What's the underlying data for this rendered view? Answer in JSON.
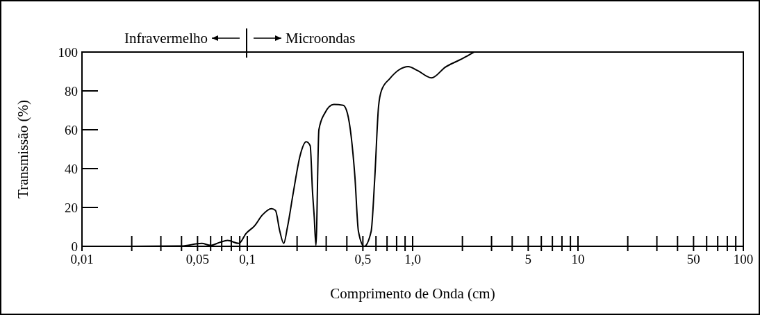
{
  "chart_data": {
    "type": "line",
    "xlabel": "Comprimento de Onda (cm)",
    "ylabel": "Transmissão (%)",
    "annotations": [
      "Infravermelho",
      "Microondas"
    ],
    "log": "x",
    "grid": false,
    "marker": "none",
    "line_style": "solid",
    "xlim": [
      0.01,
      100
    ],
    "ylim": [
      0,
      100
    ],
    "xticks": [
      {
        "value": 0.01,
        "label": "0,01"
      },
      {
        "value": 0.02,
        "label": null
      },
      {
        "value": 0.03,
        "label": null
      },
      {
        "value": 0.04,
        "label": null
      },
      {
        "value": 0.05,
        "label": "0,05"
      },
      {
        "value": 0.06,
        "label": null
      },
      {
        "value": 0.07,
        "label": null
      },
      {
        "value": 0.08,
        "label": null
      },
      {
        "value": 0.09,
        "label": null
      },
      {
        "value": 0.1,
        "label": "0,1"
      },
      {
        "value": 0.2,
        "label": null
      },
      {
        "value": 0.3,
        "label": null
      },
      {
        "value": 0.4,
        "label": null
      },
      {
        "value": 0.5,
        "label": "0,5"
      },
      {
        "value": 0.6,
        "label": null
      },
      {
        "value": 0.7,
        "label": null
      },
      {
        "value": 0.8,
        "label": null
      },
      {
        "value": 0.9,
        "label": null
      },
      {
        "value": 1,
        "label": "1,0"
      },
      {
        "value": 2,
        "label": null
      },
      {
        "value": 3,
        "label": null
      },
      {
        "value": 4,
        "label": null
      },
      {
        "value": 5,
        "label": "5"
      },
      {
        "value": 6,
        "label": null
      },
      {
        "value": 7,
        "label": null
      },
      {
        "value": 8,
        "label": null
      },
      {
        "value": 9,
        "label": null
      },
      {
        "value": 10,
        "label": "10"
      },
      {
        "value": 20,
        "label": null
      },
      {
        "value": 30,
        "label": null
      },
      {
        "value": 40,
        "label": null
      },
      {
        "value": 50,
        "label": "50"
      },
      {
        "value": 60,
        "label": null
      },
      {
        "value": 70,
        "label": null
      },
      {
        "value": 80,
        "label": null
      },
      {
        "value": 90,
        "label": null
      },
      {
        "value": 100,
        "label": "100"
      }
    ],
    "yticks": [
      0,
      20,
      40,
      60,
      80,
      100
    ],
    "series": [
      {
        "color": "#000000",
        "x": [
          0.01,
          0.02,
          0.04,
          0.053,
          0.06,
          0.068,
          0.076,
          0.089,
          0.098,
          0.111,
          0.123,
          0.14,
          0.148,
          0.157,
          0.166,
          0.175,
          0.19,
          0.209,
          0.227,
          0.24,
          0.248,
          0.254,
          0.26,
          0.271,
          0.294,
          0.334,
          0.38,
          0.403,
          0.447,
          0.47,
          0.509,
          0.561,
          0.589,
          0.622,
          0.649,
          0.727,
          0.826,
          0.94,
          1.07,
          1.3,
          1.58,
          1.91,
          2.29,
          2.35
        ],
        "values": [
          0,
          0,
          0.2,
          1.5,
          0.5,
          2,
          3,
          1.5,
          6.5,
          10.7,
          16,
          19.4,
          18.5,
          8,
          1.5,
          10,
          28,
          47,
          53.8,
          51.8,
          28,
          15,
          0.5,
          60,
          68.5,
          73,
          72.6,
          68.5,
          36.3,
          7.7,
          0,
          7.7,
          34,
          72,
          80.4,
          86.3,
          90.8,
          92.5,
          90.5,
          86.7,
          92.3,
          95.8,
          99.4,
          100
        ]
      }
    ]
  }
}
